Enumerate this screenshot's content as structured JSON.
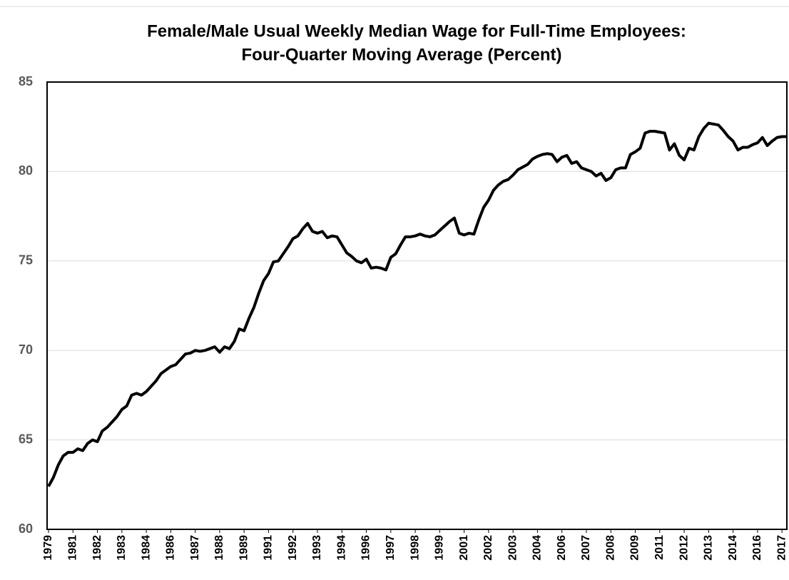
{
  "chart_data": {
    "type": "line",
    "title": "Female/Male Usual Weekly Median Wage for Full-Time Employees:",
    "subtitle": "Four-Quarter Moving Average (Percent)",
    "categories": [
      "1979",
      null,
      null,
      null,
      null,
      "1981",
      null,
      null,
      null,
      null,
      "1982",
      null,
      null,
      null,
      null,
      "1983",
      null,
      null,
      null,
      null,
      "1984",
      null,
      null,
      null,
      null,
      "1986",
      null,
      null,
      null,
      null,
      "1987",
      null,
      null,
      null,
      null,
      "1988",
      null,
      null,
      null,
      null,
      "1989",
      null,
      null,
      null,
      null,
      "1991",
      null,
      null,
      null,
      null,
      "1992",
      null,
      null,
      null,
      null,
      "1993",
      null,
      null,
      null,
      null,
      "1994",
      null,
      null,
      null,
      null,
      "1996",
      null,
      null,
      null,
      null,
      "1997",
      null,
      null,
      null,
      null,
      "1998",
      null,
      null,
      null,
      null,
      "1999",
      null,
      null,
      null,
      null,
      "2001",
      null,
      null,
      null,
      null,
      "2002",
      null,
      null,
      null,
      null,
      "2003",
      null,
      null,
      null,
      null,
      "2004",
      null,
      null,
      null,
      null,
      "2006",
      null,
      null,
      null,
      null,
      "2007",
      null,
      null,
      null,
      null,
      "2008",
      null,
      null,
      null,
      null,
      "2009",
      null,
      null,
      null,
      null,
      "2011",
      null,
      null,
      null,
      null,
      "2012",
      null,
      null,
      null,
      null,
      "2013",
      null,
      null,
      null,
      null,
      "2014",
      null,
      null,
      null,
      null,
      "2016",
      null,
      null,
      null,
      null,
      "2017",
      null
    ],
    "series": [
      {
        "color": "#000000",
        "values": [
          62.4,
          62.9,
          63.6,
          64.1,
          64.3,
          64.3,
          64.5,
          64.4,
          64.8,
          65.0,
          64.9,
          65.5,
          65.7,
          66.0,
          66.3,
          66.7,
          66.9,
          67.5,
          67.6,
          67.5,
          67.7,
          68.0,
          68.3,
          68.7,
          68.9,
          69.1,
          69.2,
          69.5,
          69.8,
          69.85,
          70.0,
          69.95,
          70.0,
          70.1,
          70.2,
          69.9,
          70.2,
          70.1,
          70.5,
          71.2,
          71.1,
          71.8,
          72.4,
          73.2,
          73.9,
          74.3,
          74.95,
          75.0,
          75.4,
          75.8,
          76.25,
          76.4,
          76.8,
          77.1,
          76.65,
          76.55,
          76.65,
          76.3,
          76.4,
          76.35,
          75.9,
          75.45,
          75.25,
          75.0,
          74.9,
          75.1,
          74.6,
          74.65,
          74.6,
          74.5,
          75.2,
          75.4,
          75.9,
          76.35,
          76.35,
          76.4,
          76.5,
          76.4,
          76.35,
          76.45,
          76.7,
          76.95,
          77.2,
          77.4,
          76.55,
          76.45,
          76.55,
          76.5,
          77.3,
          78.0,
          78.4,
          78.95,
          79.25,
          79.45,
          79.55,
          79.8,
          80.1,
          80.25,
          80.4,
          80.7,
          80.85,
          80.95,
          81.0,
          80.95,
          80.55,
          80.8,
          80.9,
          80.45,
          80.55,
          80.2,
          80.1,
          80.0,
          79.75,
          79.9,
          79.5,
          79.65,
          80.1,
          80.2,
          80.2,
          80.95,
          81.1,
          81.3,
          82.15,
          82.25,
          82.25,
          82.2,
          82.15,
          81.2,
          81.55,
          80.9,
          80.65,
          81.3,
          81.2,
          81.95,
          82.4,
          82.7,
          82.65,
          82.6,
          82.3,
          81.95,
          81.7,
          81.2,
          81.35,
          81.35,
          81.5,
          81.6,
          81.9,
          81.45,
          81.7,
          81.9,
          81.95,
          81.95
        ]
      }
    ],
    "ylim": [
      60,
      85
    ],
    "yticks": [
      60,
      65,
      70,
      75,
      80,
      85
    ],
    "grid": true
  }
}
